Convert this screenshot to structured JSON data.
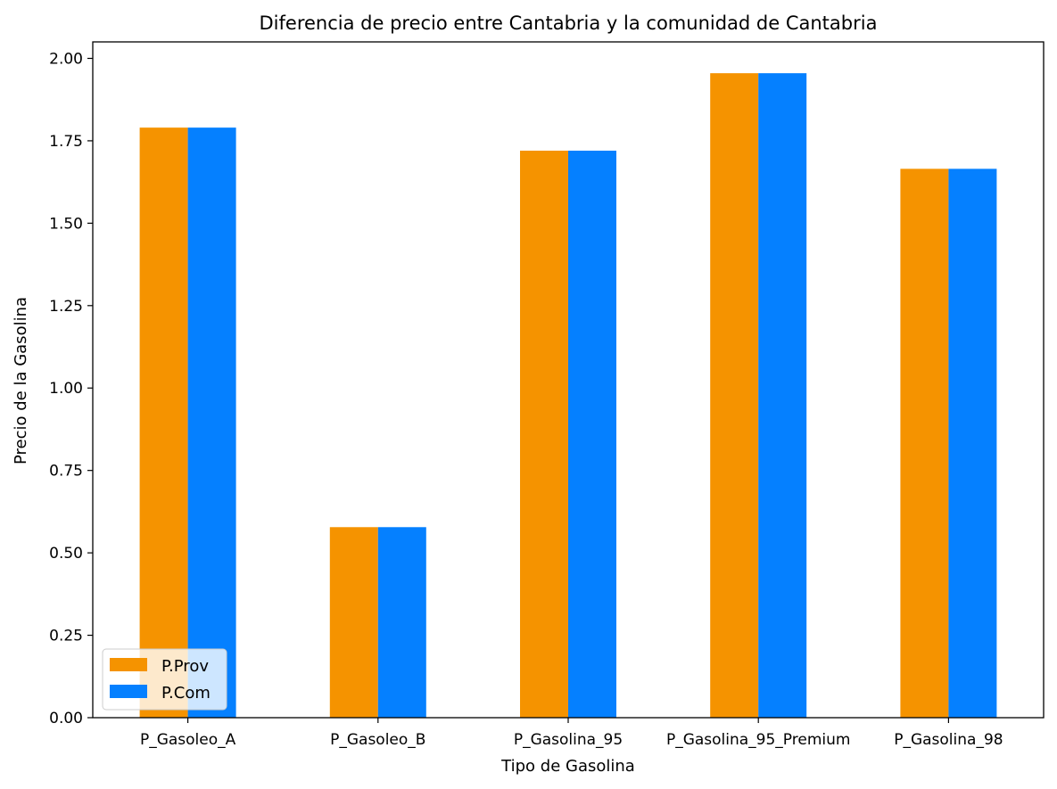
{
  "chart_data": {
    "type": "bar",
    "title": "Diferencia de precio entre Cantabria y la comunidad de Cantabria",
    "xlabel": "Tipo de Gasolina",
    "ylabel": "Precio de la Gasolina",
    "categories": [
      "P_Gasoleo_A",
      "P_Gasoleo_B",
      "P_Gasolina_95",
      "P_Gasolina_95_Premium",
      "P_Gasolina_98"
    ],
    "series": [
      {
        "name": "P.Prov",
        "color": "#f59300",
        "values": [
          1.79,
          0.578,
          1.72,
          1.955,
          1.665
        ]
      },
      {
        "name": "P.Com",
        "color": "#0580ff",
        "values": [
          1.79,
          0.578,
          1.72,
          1.955,
          1.665
        ]
      }
    ],
    "ylim": [
      0,
      2.05
    ],
    "yticks": [
      "0.00",
      "0.25",
      "0.50",
      "0.75",
      "1.00",
      "1.25",
      "1.50",
      "1.75",
      "2.00"
    ],
    "grid": false,
    "legend_position": "lower-left"
  }
}
